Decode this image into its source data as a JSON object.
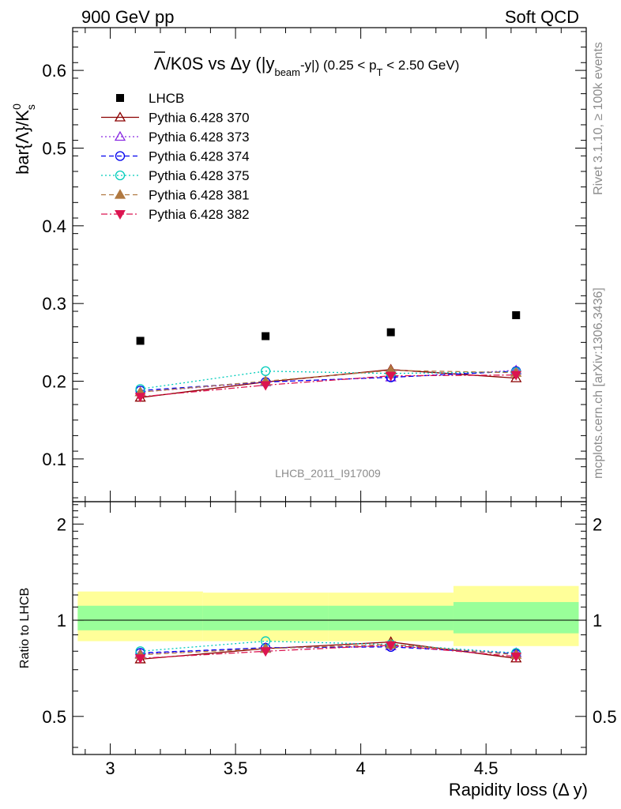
{
  "header": {
    "left": "900 GeV pp",
    "right": "Soft QCD"
  },
  "side_labels": {
    "rivet": "Rivet 3.1.10, ≥ 100k events",
    "url": "mcplots.cern.ch [arXiv:1306.3436]"
  },
  "watermark": "LHCB_2011_I917009",
  "colors": {
    "LHCB": "#000000",
    "p370": "#8b0000",
    "p373": "#8a2be2",
    "p374": "#0000ee",
    "p375": "#00ccbb",
    "p381": "#b07840",
    "p382": "#dc1450",
    "band_inner": "#99ff99",
    "band_outer": "#ffff99"
  },
  "chart_data": [
    {
      "type": "scatter",
      "title": "Λ̅/K0S vs Δy (|y_beam-y|) (0.25 < p_T < 2.50 GeV)",
      "title_parts": {
        "main": "Λ/K0S vs Δy (|y",
        "sub1": "beam",
        "mid": "-y|) (0.25 < p",
        "sub2": "T",
        "end": " < 2.50 GeV)"
      },
      "ylabel": "bar{Λ}/K",
      "ylabel_sup": "0",
      "ylabel_sub": "s",
      "ylim": [
        0.045,
        0.655
      ],
      "yticks": [
        "0.1",
        "0.2",
        "0.3",
        "0.4",
        "0.5",
        "0.6"
      ],
      "yticks_values": [
        0.1,
        0.2,
        0.3,
        0.4,
        0.5,
        0.6
      ],
      "legend_position": "top-left",
      "x": [
        3.12,
        3.62,
        4.12,
        4.62
      ],
      "series": [
        {
          "name": "LHCB",
          "marker": "square-filled",
          "line": "none",
          "values": [
            0.252,
            0.258,
            0.263,
            0.285
          ]
        },
        {
          "name": "Pythia 6.428 370",
          "marker": "triangle-up-open",
          "line": "solid",
          "values": [
            0.179,
            0.199,
            0.215,
            0.204
          ]
        },
        {
          "name": "Pythia 6.428 373",
          "marker": "triangle-up-open",
          "line": "dotted",
          "values": [
            0.186,
            0.199,
            0.205,
            0.214
          ]
        },
        {
          "name": "Pythia 6.428 374",
          "marker": "circle-open",
          "line": "dashed",
          "values": [
            0.188,
            0.199,
            0.205,
            0.213
          ]
        },
        {
          "name": "Pythia 6.428 375",
          "marker": "circle-open",
          "line": "dotted",
          "values": [
            0.19,
            0.213,
            0.21,
            0.212
          ]
        },
        {
          "name": "Pythia 6.428 381",
          "marker": "triangle-up-filled",
          "line": "dashed",
          "values": [
            0.186,
            0.2,
            0.214,
            0.211
          ]
        },
        {
          "name": "Pythia 6.428 382",
          "marker": "triangle-down-filled",
          "line": "dashdot",
          "values": [
            0.18,
            0.195,
            0.207,
            0.208
          ]
        }
      ]
    },
    {
      "type": "scatter",
      "title": "",
      "ylabel": "Ratio to LHCB",
      "xlabel": "Rapidity loss (Δ y)",
      "xlim": [
        2.85,
        4.9
      ],
      "xticks": [
        "3",
        "3.5",
        "4",
        "4.5"
      ],
      "xticks_values": [
        3.0,
        3.5,
        4.0,
        4.5
      ],
      "ylim": [
        0.38,
        2.35
      ],
      "yticks": [
        "0.5",
        "1",
        "2"
      ],
      "yticks_values": [
        0.5,
        1.0,
        2.0
      ],
      "y_scale": "log",
      "reference_line": 1.0,
      "bands": {
        "edges": [
          2.87,
          3.37,
          3.87,
          4.37,
          4.87
        ],
        "inner": [
          [
            0.93,
            1.11
          ],
          [
            0.93,
            1.11
          ],
          [
            0.93,
            1.11
          ],
          [
            0.91,
            1.14
          ]
        ],
        "outer": [
          [
            0.86,
            1.23
          ],
          [
            0.86,
            1.22
          ],
          [
            0.86,
            1.22
          ],
          [
            0.83,
            1.28
          ]
        ]
      },
      "x": [
        3.12,
        3.62,
        4.12,
        4.62
      ],
      "series": [
        {
          "name": "Pythia 6.428 370",
          "values": [
            0.755,
            0.815,
            0.855,
            0.76
          ]
        },
        {
          "name": "Pythia 6.428 373",
          "values": [
            0.785,
            0.82,
            0.83,
            0.79
          ]
        },
        {
          "name": "Pythia 6.428 374",
          "values": [
            0.79,
            0.82,
            0.825,
            0.785
          ]
        },
        {
          "name": "Pythia 6.428 375",
          "values": [
            0.8,
            0.86,
            0.84,
            0.79
          ]
        },
        {
          "name": "Pythia 6.428 381",
          "values": [
            0.78,
            0.815,
            0.84,
            0.78
          ]
        },
        {
          "name": "Pythia 6.428 382",
          "values": [
            0.76,
            0.8,
            0.835,
            0.77
          ]
        }
      ]
    }
  ]
}
